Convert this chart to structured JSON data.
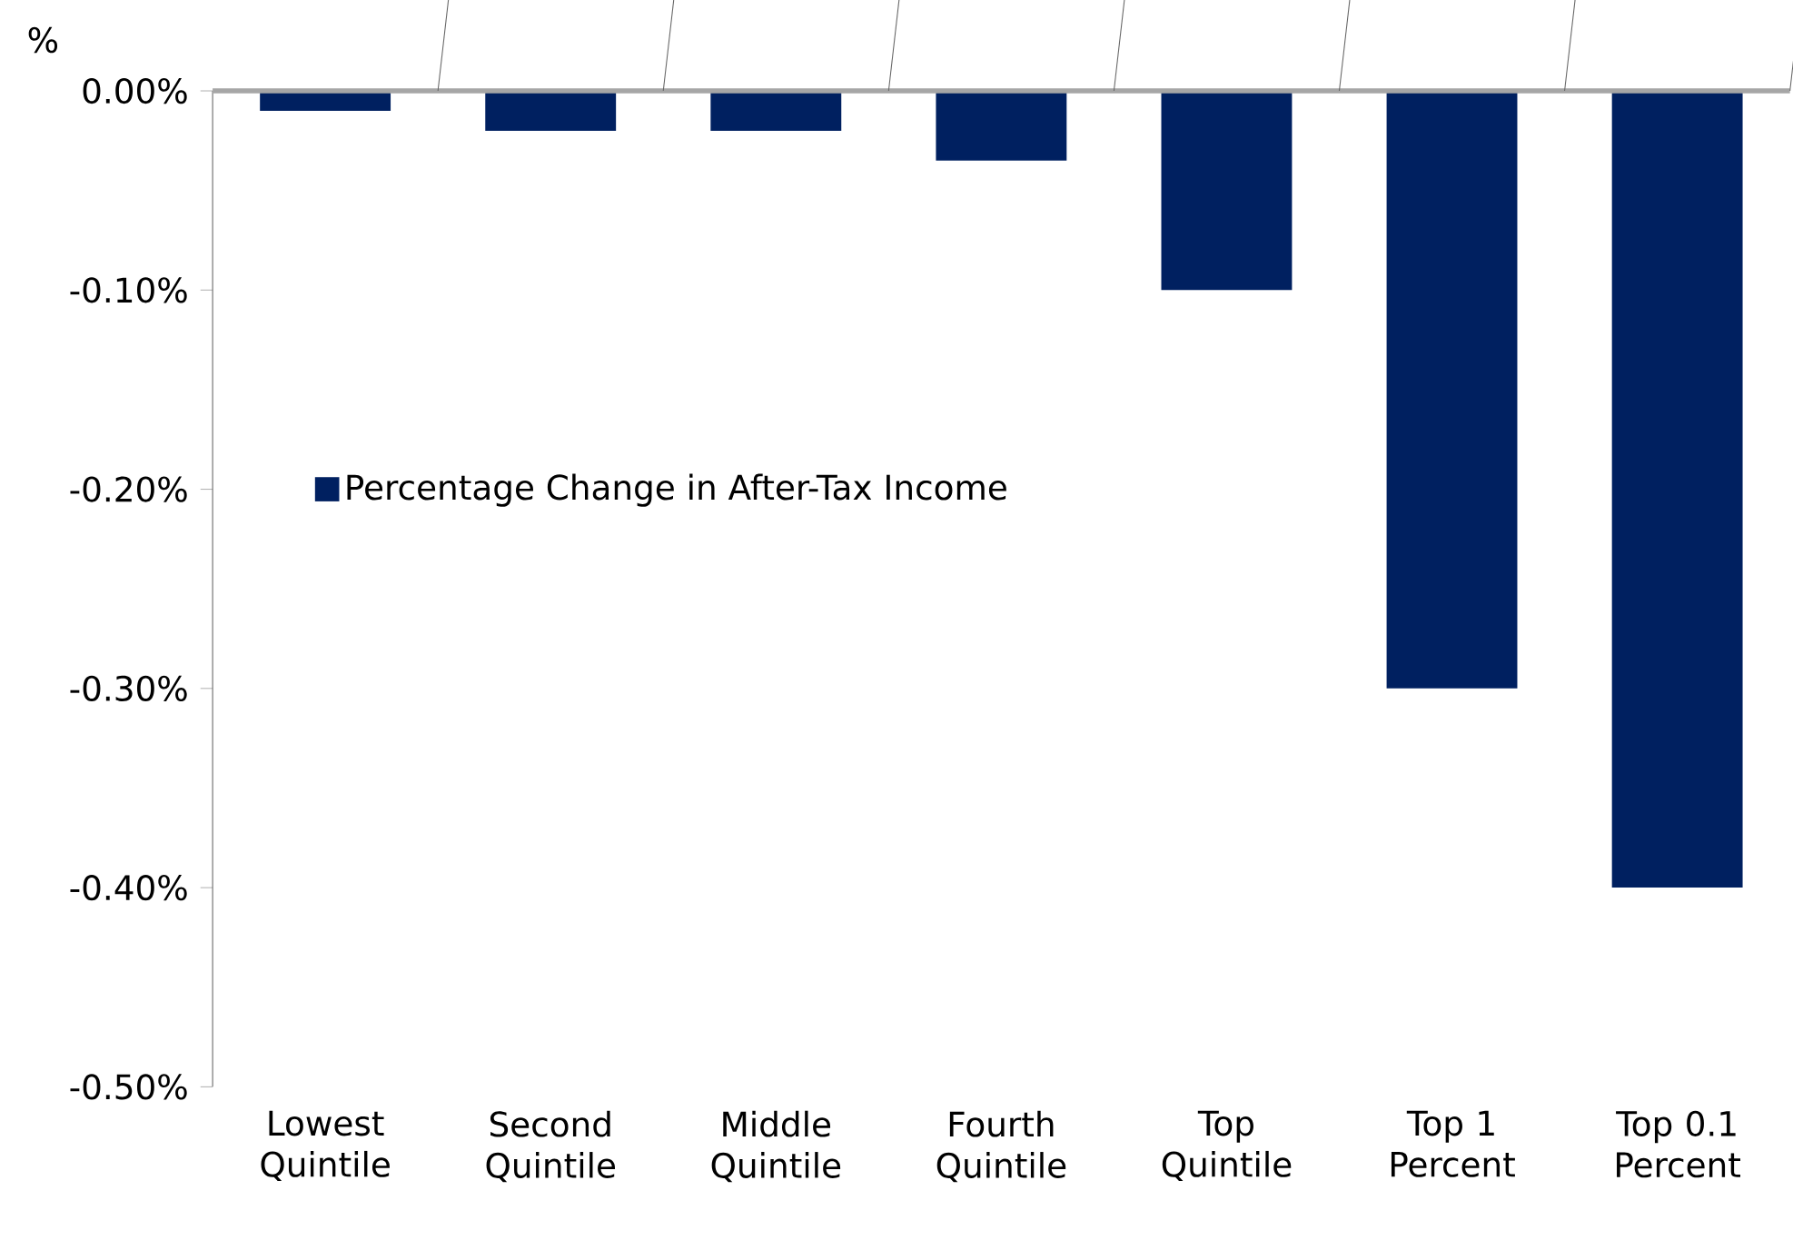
{
  "chart_data": {
    "type": "bar",
    "ylabel": "%",
    "categories": [
      "Lowest Quintile",
      "Second Quintile",
      "Middle Quintile",
      "Fourth Quintile",
      "Top Quintile",
      "Top 1 Percent",
      "Top 0.1 Percent"
    ],
    "series": [
      {
        "name": "Percentage Change in After-Tax Income",
        "color": "#002060",
        "values": [
          -0.01,
          -0.02,
          -0.02,
          -0.035,
          -0.1,
          -0.3,
          -0.4
        ]
      }
    ],
    "ylim": [
      -0.5,
      0
    ],
    "yticks": [
      {
        "value": 0,
        "label": "0.00%"
      },
      {
        "value": -0.1,
        "label": "-0.10%"
      },
      {
        "value": -0.2,
        "label": "-0.20%"
      },
      {
        "value": -0.3,
        "label": "-0.30%"
      },
      {
        "value": -0.4,
        "label": "-0.40%"
      },
      {
        "value": -0.5,
        "label": "-0.50%"
      }
    ],
    "legend": "left",
    "grid": false
  }
}
